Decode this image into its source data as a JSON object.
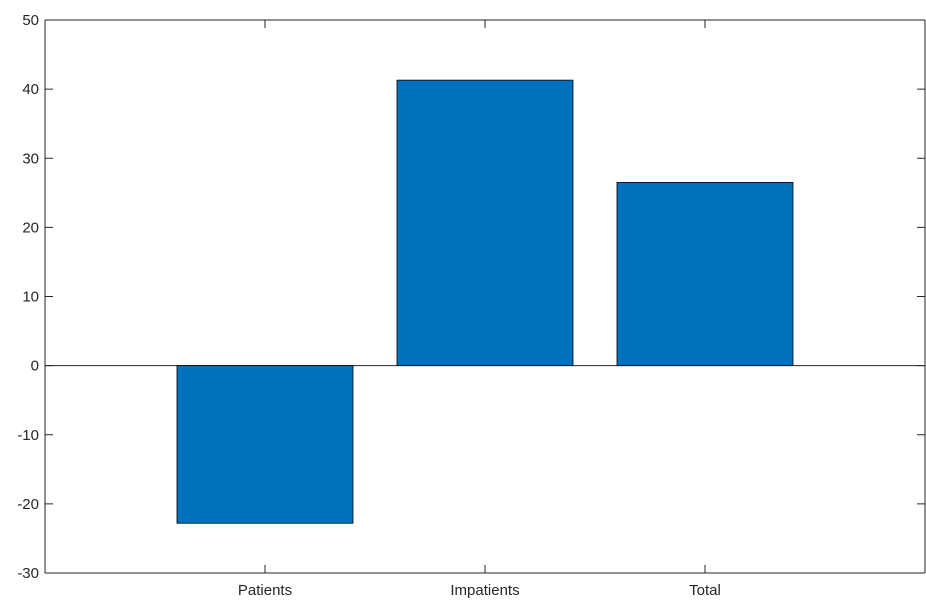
{
  "chart_data": {
    "type": "bar",
    "categories": [
      "Patients",
      "Impatients",
      "Total"
    ],
    "values": [
      -22.8,
      41.3,
      26.5
    ],
    "ylim": [
      -30,
      50
    ],
    "yticks": [
      -30,
      -20,
      -10,
      0,
      10,
      20,
      30,
      40,
      50
    ],
    "xlim": [
      0,
      4
    ],
    "grid": false,
    "legend": "none",
    "colors": {
      "bar": "#0072BD",
      "axis": "#262626",
      "bar_edge": "#000000"
    }
  }
}
